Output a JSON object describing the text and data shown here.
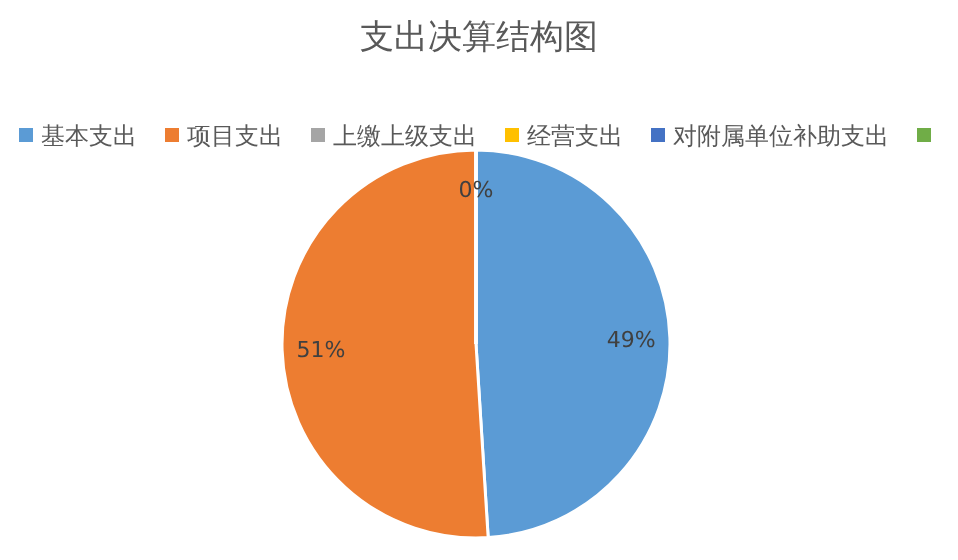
{
  "chart_data": {
    "type": "pie",
    "title": "支出决算结构图",
    "categories": [
      "基本支出",
      "项目支出",
      "上缴上级支出",
      "经营支出",
      "对附属单位补助支出",
      null
    ],
    "values": [
      49,
      51,
      0,
      0,
      0,
      0
    ],
    "colors": [
      "#5b9bd5",
      "#ed7d31",
      "#a5a5a5",
      "#ffc000",
      "#4472c4",
      "#70ad47"
    ],
    "value_labels": [
      "49%",
      "51%",
      "0%",
      null,
      null,
      null
    ],
    "legend": "top"
  }
}
